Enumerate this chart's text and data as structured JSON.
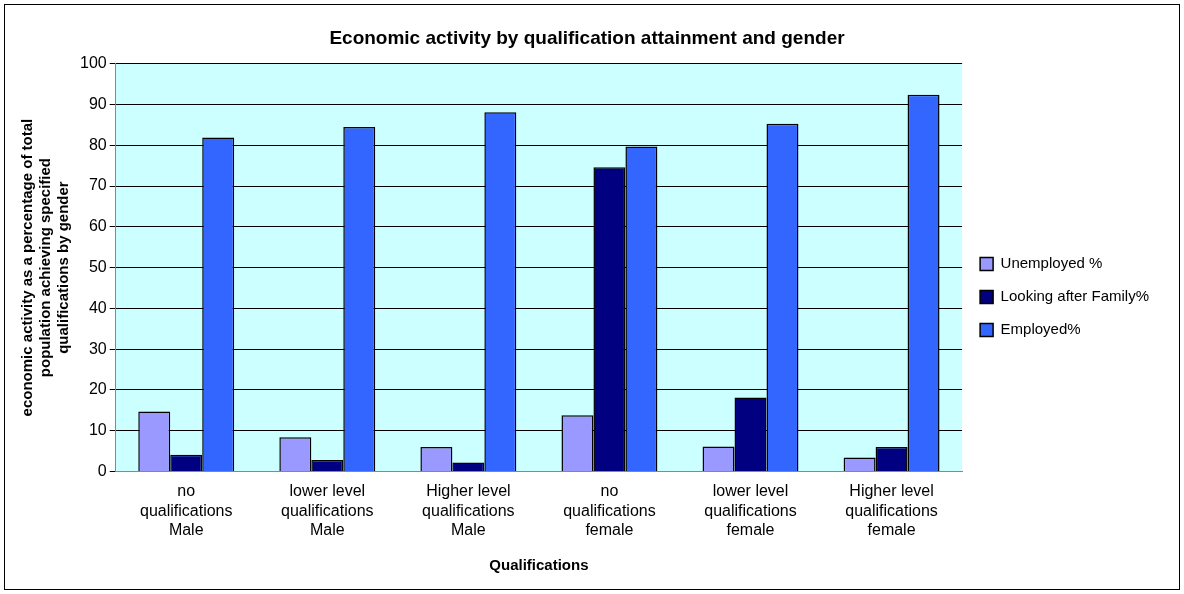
{
  "chart_data": {
    "type": "bar",
    "title": "Economic activity by qualification attainment and gender",
    "xlabel": "Qualifications",
    "ylabel": "economic activity as a percentage of total population achieving specified qualifications by gender",
    "categories": [
      "no qualifications Male",
      "lower level qualifications Male",
      "Higher level qualifications Male",
      "no qualifications female",
      "lower level qualifications female",
      "Higher level qualifications female"
    ],
    "series": [
      {
        "name": "Unemployed %",
        "color": "#9999ff",
        "values": [
          14.7,
          8.4,
          6.0,
          13.8,
          6.1,
          3.4
        ]
      },
      {
        "name": "Looking after Family%",
        "color": "#000080",
        "values": [
          4.1,
          2.8,
          2.2,
          74.6,
          18.1,
          6.0
        ]
      },
      {
        "name": "Employed%",
        "color": "#3366ff",
        "values": [
          81.9,
          84.5,
          88.1,
          79.7,
          85.3,
          92.4
        ]
      }
    ],
    "ylim": [
      0,
      100
    ],
    "yticks": [
      0,
      10,
      20,
      30,
      40,
      50,
      60,
      70,
      80,
      90,
      100
    ],
    "grid": "y",
    "legend": "right"
  }
}
